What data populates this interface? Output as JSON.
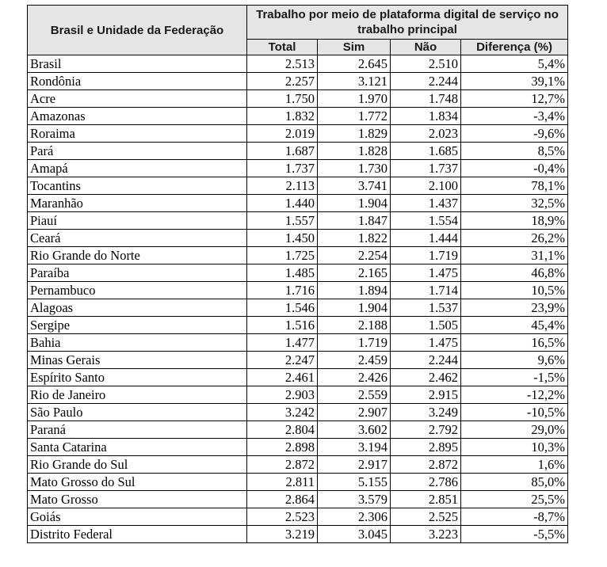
{
  "header": {
    "region_label": "Brasil e Unidade da Federação",
    "group_label": "Trabalho por meio de plataforma digital de serviço no trabalho principal",
    "columns": [
      "Total",
      "Sim",
      "Não",
      "Diferença (%)"
    ]
  },
  "rows": [
    {
      "name": "Brasil",
      "total": "2.513",
      "sim": "2.645",
      "nao": "2.510",
      "dif": "5,4%"
    },
    {
      "name": "Rondônia",
      "total": "2.257",
      "sim": "3.121",
      "nao": "2.244",
      "dif": "39,1%"
    },
    {
      "name": "Acre",
      "total": "1.750",
      "sim": "1.970",
      "nao": "1.748",
      "dif": "12,7%"
    },
    {
      "name": "Amazonas",
      "total": "1.832",
      "sim": "1.772",
      "nao": "1.834",
      "dif": "-3,4%"
    },
    {
      "name": "Roraima",
      "total": "2.019",
      "sim": "1.829",
      "nao": "2.023",
      "dif": "-9,6%"
    },
    {
      "name": "Pará",
      "total": "1.687",
      "sim": "1.828",
      "nao": "1.685",
      "dif": "8,5%"
    },
    {
      "name": "Amapá",
      "total": "1.737",
      "sim": "1.730",
      "nao": "1.737",
      "dif": "-0,4%"
    },
    {
      "name": "Tocantins",
      "total": "2.113",
      "sim": "3.741",
      "nao": "2.100",
      "dif": "78,1%"
    },
    {
      "name": "Maranhão",
      "total": "1.440",
      "sim": "1.904",
      "nao": "1.437",
      "dif": "32,5%"
    },
    {
      "name": "Piauí",
      "total": "1.557",
      "sim": "1.847",
      "nao": "1.554",
      "dif": "18,9%"
    },
    {
      "name": "Ceará",
      "total": "1.450",
      "sim": "1.822",
      "nao": "1.444",
      "dif": "26,2%"
    },
    {
      "name": "Rio Grande do Norte",
      "total": "1.725",
      "sim": "2.254",
      "nao": "1.719",
      "dif": "31,1%"
    },
    {
      "name": "Paraíba",
      "total": "1.485",
      "sim": "2.165",
      "nao": "1.475",
      "dif": "46,8%"
    },
    {
      "name": "Pernambuco",
      "total": "1.716",
      "sim": "1.894",
      "nao": "1.714",
      "dif": "10,5%"
    },
    {
      "name": "Alagoas",
      "total": "1.546",
      "sim": "1.904",
      "nao": "1.537",
      "dif": "23,9%"
    },
    {
      "name": "Sergipe",
      "total": "1.516",
      "sim": "2.188",
      "nao": "1.505",
      "dif": "45,4%"
    },
    {
      "name": "Bahia",
      "total": "1.477",
      "sim": "1.719",
      "nao": "1.475",
      "dif": "16,5%"
    },
    {
      "name": "Minas Gerais",
      "total": "2.247",
      "sim": "2.459",
      "nao": "2.244",
      "dif": "9,6%"
    },
    {
      "name": "Espírito Santo",
      "total": "2.461",
      "sim": "2.426",
      "nao": "2.462",
      "dif": "-1,5%"
    },
    {
      "name": "Rio de Janeiro",
      "total": "2.903",
      "sim": "2.559",
      "nao": "2.915",
      "dif": "-12,2%"
    },
    {
      "name": "São Paulo",
      "total": "3.242",
      "sim": "2.907",
      "nao": "3.249",
      "dif": "-10,5%"
    },
    {
      "name": "Paraná",
      "total": "2.804",
      "sim": "3.602",
      "nao": "2.792",
      "dif": "29,0%"
    },
    {
      "name": "Santa Catarina",
      "total": "2.898",
      "sim": "3.194",
      "nao": "2.895",
      "dif": "10,3%"
    },
    {
      "name": "Rio Grande do Sul",
      "total": "2.872",
      "sim": "2.917",
      "nao": "2.872",
      "dif": "1,6%"
    },
    {
      "name": "Mato Grosso do Sul",
      "total": "2.811",
      "sim": "5.155",
      "nao": "2.786",
      "dif": "85,0%"
    },
    {
      "name": "Mato Grosso",
      "total": "2.864",
      "sim": "3.579",
      "nao": "2.851",
      "dif": "25,5%"
    },
    {
      "name": "Goiás",
      "total": "2.523",
      "sim": "2.306",
      "nao": "2.525",
      "dif": "-8,7%"
    },
    {
      "name": "Distrito Federal",
      "total": "3.219",
      "sim": "3.045",
      "nao": "3.223",
      "dif": "-5,5%"
    }
  ]
}
